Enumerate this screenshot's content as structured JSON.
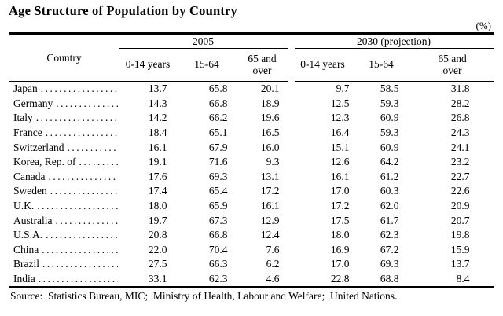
{
  "title": "Age Structure of Population by Country",
  "unit_label": "(%)",
  "table": {
    "country_header": "Country",
    "groups": [
      {
        "label": "2005",
        "columns": [
          "0-14 years",
          "15-64",
          "65 and\nover"
        ]
      },
      {
        "label": "2030 (projection)",
        "columns": [
          "0-14 years",
          "15-64",
          "65 and\nover"
        ]
      }
    ],
    "rows": [
      {
        "country": "Japan",
        "values": [
          "13.7",
          "65.8",
          "20.1",
          "9.7",
          "58.5",
          "31.8"
        ]
      },
      {
        "country": "Germany",
        "values": [
          "14.3",
          "66.8",
          "18.9",
          "12.5",
          "59.3",
          "28.2"
        ]
      },
      {
        "country": "Italy",
        "values": [
          "14.2",
          "66.2",
          "19.6",
          "12.3",
          "60.9",
          "26.8"
        ]
      },
      {
        "country": "France",
        "values": [
          "18.4",
          "65.1",
          "16.5",
          "16.4",
          "59.3",
          "24.3"
        ]
      },
      {
        "country": "Switzerland",
        "values": [
          "16.1",
          "67.9",
          "16.0",
          "15.1",
          "60.9",
          "24.1"
        ]
      },
      {
        "country": "Korea, Rep. of",
        "values": [
          "19.1",
          "71.6",
          "9.3",
          "12.6",
          "64.2",
          "23.2"
        ]
      },
      {
        "country": "Canada",
        "values": [
          "17.6",
          "69.3",
          "13.1",
          "16.1",
          "61.2",
          "22.7"
        ]
      },
      {
        "country": "Sweden",
        "values": [
          "17.4",
          "65.4",
          "17.2",
          "17.0",
          "60.3",
          "22.6"
        ]
      },
      {
        "country": "U.K.",
        "values": [
          "18.0",
          "65.9",
          "16.1",
          "17.2",
          "62.0",
          "20.9"
        ]
      },
      {
        "country": "Australia",
        "values": [
          "19.7",
          "67.3",
          "12.9",
          "17.5",
          "61.7",
          "20.7"
        ]
      },
      {
        "country": "U.S.A.",
        "values": [
          "20.8",
          "66.8",
          "12.4",
          "18.0",
          "62.3",
          "19.8"
        ]
      },
      {
        "country": "China",
        "values": [
          "22.0",
          "70.4",
          "7.6",
          "16.9",
          "67.2",
          "15.9"
        ]
      },
      {
        "country": "Brazil",
        "values": [
          "27.5",
          "66.3",
          "6.2",
          "17.0",
          "69.3",
          "13.7"
        ]
      },
      {
        "country": "India",
        "values": [
          "33.1",
          "62.3",
          "4.6",
          "22.8",
          "68.8",
          "8.4"
        ]
      }
    ]
  },
  "source": "Source:  Statistics Bureau, MIC;  Ministry of Health, Labour and Welfare;  United Nations."
}
